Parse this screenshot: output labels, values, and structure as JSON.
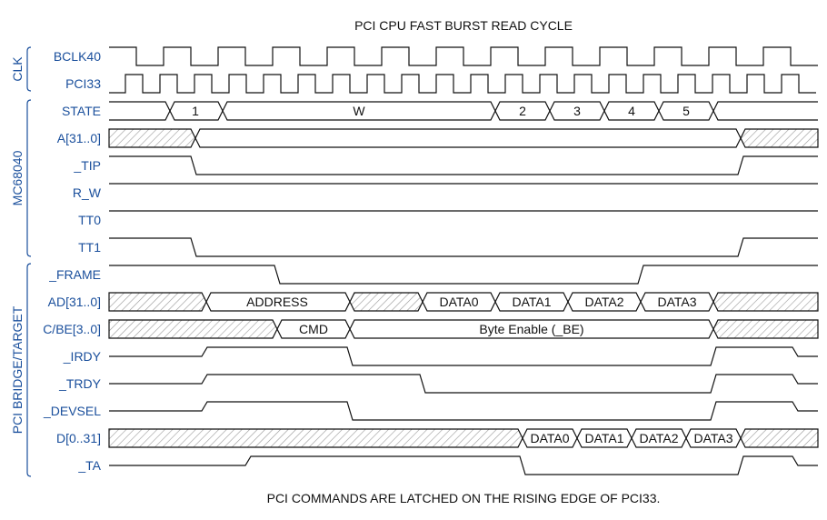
{
  "title": "PCI CPU FAST BURST READ CYCLE",
  "footnote": "PCI COMMANDS ARE LATCHED ON THE RISING EDGE OF PCI33.",
  "colors": {
    "label": "#1a4f9c",
    "wave": "#111111",
    "hatch": "#999999"
  },
  "groups": [
    {
      "id": "clk",
      "label": "CLK",
      "signals": [
        "bclk40",
        "pci33"
      ]
    },
    {
      "id": "mc68040",
      "label": "MC68040",
      "signals": [
        "state",
        "a",
        "tip",
        "rw",
        "tt0",
        "tt1"
      ]
    },
    {
      "id": "pci",
      "label": "PCI BRIDGE/TARGET",
      "signals": [
        "frame",
        "ad",
        "cbe",
        "irdy",
        "trdy",
        "devsel",
        "d",
        "ta"
      ]
    }
  ],
  "signals": [
    {
      "id": "bclk40",
      "name": "BCLK40"
    },
    {
      "id": "pci33",
      "name": "PCI33"
    },
    {
      "id": "state",
      "name": "STATE",
      "values": [
        "1",
        "W",
        "2",
        "3",
        "4",
        "5"
      ]
    },
    {
      "id": "a",
      "name": "A[31..0]"
    },
    {
      "id": "tip",
      "name": "_TIP"
    },
    {
      "id": "rw",
      "name": "R_W"
    },
    {
      "id": "tt0",
      "name": "TT0"
    },
    {
      "id": "tt1",
      "name": "TT1"
    },
    {
      "id": "frame",
      "name": "_FRAME"
    },
    {
      "id": "ad",
      "name": "AD[31..0]",
      "values": [
        "ADDRESS",
        "DATA0",
        "DATA1",
        "DATA2",
        "DATA3"
      ]
    },
    {
      "id": "cbe",
      "name": "C/BE[3..0]",
      "values": [
        "CMD",
        "Byte Enable (_BE)"
      ]
    },
    {
      "id": "irdy",
      "name": "_IRDY"
    },
    {
      "id": "trdy",
      "name": "_TRDY"
    },
    {
      "id": "devsel",
      "name": "_DEVSEL"
    },
    {
      "id": "d",
      "name": "D[0..31]",
      "values": [
        "DATA0",
        "DATA1",
        "DATA2",
        "DATA3"
      ]
    },
    {
      "id": "ta",
      "name": "_TA"
    }
  ]
}
